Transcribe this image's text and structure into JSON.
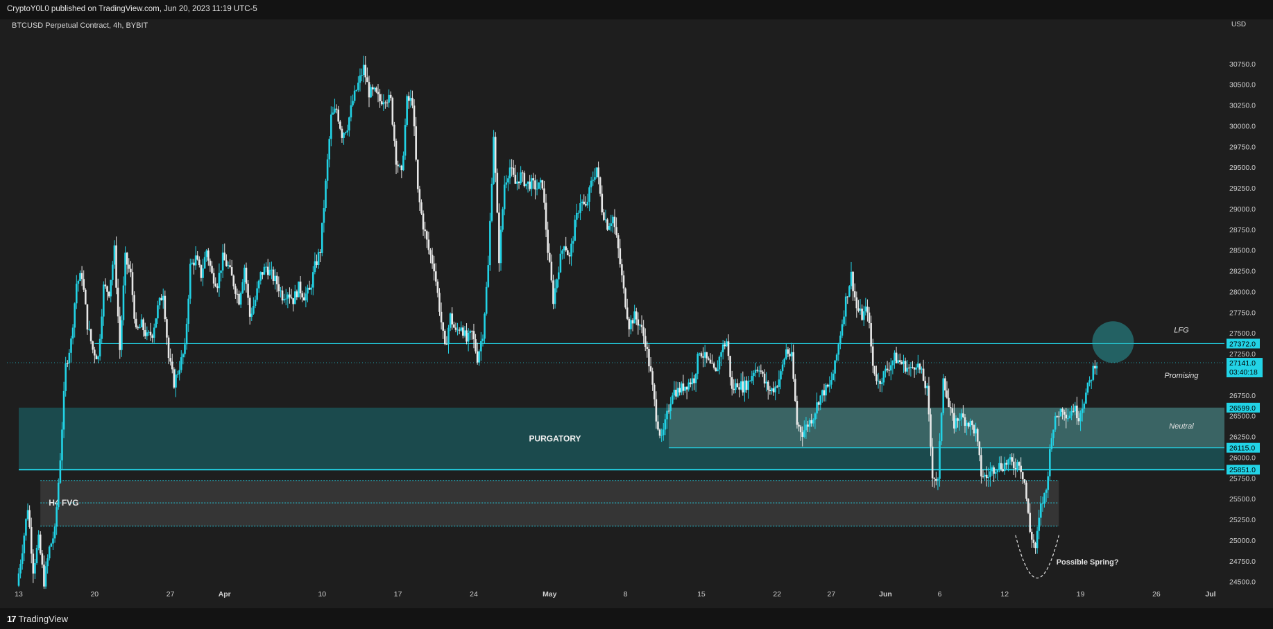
{
  "header": {
    "published": "CryptoY0L0 published on TradingView.com, Jun 20, 2023 11:19 UTC-5"
  },
  "footer": {
    "brand": "TradingView",
    "logo_glyph": "17"
  },
  "chart_data": {
    "type": "candlestick",
    "title": "BTCUSD Perpetual Contract, 4h, BYBIT",
    "currency_label": "USD",
    "y_ticks": [
      30750,
      30500,
      30250,
      30000,
      29750,
      29500,
      29250,
      29000,
      28750,
      28500,
      28250,
      28000,
      27750,
      27500,
      27250,
      27000,
      26750,
      26500,
      26250,
      26000,
      25750,
      25500,
      25250,
      25000,
      24750,
      24500
    ],
    "y_tick_labels": [
      "30750.0",
      "30500.0",
      "30250.0",
      "30000.0",
      "29750.0",
      "29500.0",
      "29250.0",
      "29000.0",
      "28750.0",
      "28500.0",
      "28250.0",
      "28000.0",
      "27750.0",
      "27500.0",
      "27250.0",
      "27000.0",
      "26750.0",
      "26500.0",
      "26250.0",
      "26000.0",
      "25750.0",
      "25500.0",
      "25250.0",
      "25000.0",
      "24750.0",
      "24500.0"
    ],
    "ylim": [
      24380,
      31200
    ],
    "x_range": [
      "2023-03-13",
      "2023-07-01"
    ],
    "x_ticks": [
      {
        "label": "13",
        "date": "2023-03-13"
      },
      {
        "label": "20",
        "date": "2023-03-20"
      },
      {
        "label": "27",
        "date": "2023-03-27"
      },
      {
        "label": "Apr",
        "date": "2023-04-01"
      },
      {
        "label": "10",
        "date": "2023-04-10"
      },
      {
        "label": "17",
        "date": "2023-04-17"
      },
      {
        "label": "24",
        "date": "2023-04-24"
      },
      {
        "label": "May",
        "date": "2023-05-01"
      },
      {
        "label": "8",
        "date": "2023-05-08"
      },
      {
        "label": "15",
        "date": "2023-05-15"
      },
      {
        "label": "22",
        "date": "2023-05-22"
      },
      {
        "label": "27",
        "date": "2023-05-27"
      },
      {
        "label": "Jun",
        "date": "2023-06-01"
      },
      {
        "label": "6",
        "date": "2023-06-06"
      },
      {
        "label": "12",
        "date": "2023-06-12"
      },
      {
        "label": "19",
        "date": "2023-06-19"
      },
      {
        "label": "26",
        "date": "2023-06-26"
      },
      {
        "label": "Jul",
        "date": "2023-07-01"
      }
    ],
    "price_path": [
      [
        "2023-03-13",
        24450
      ],
      [
        "2023-03-13T12",
        24900
      ],
      [
        "2023-03-14",
        25400
      ],
      [
        "2023-03-14T12",
        24650
      ],
      [
        "2023-03-15",
        25000
      ],
      [
        "2023-03-15T12",
        24500
      ],
      [
        "2023-03-16",
        24900
      ],
      [
        "2023-03-16T12",
        25100
      ],
      [
        "2023-03-17",
        26000
      ],
      [
        "2023-03-17T12",
        27100
      ],
      [
        "2023-03-18",
        27400
      ],
      [
        "2023-03-18T12",
        28100
      ],
      [
        "2023-03-19",
        28200
      ],
      [
        "2023-03-19T12",
        27600
      ],
      [
        "2023-03-20",
        27300
      ],
      [
        "2023-03-20T12",
        27200
      ],
      [
        "2023-03-21",
        28050
      ],
      [
        "2023-03-21T12",
        28000
      ],
      [
        "2023-03-22",
        28500
      ],
      [
        "2023-03-22T12",
        27300
      ],
      [
        "2023-03-23",
        28400
      ],
      [
        "2023-03-23T12",
        28200
      ],
      [
        "2023-03-24",
        27500
      ],
      [
        "2023-03-24T12",
        27600
      ],
      [
        "2023-03-25",
        27450
      ],
      [
        "2023-03-25T12",
        27500
      ],
      [
        "2023-03-26",
        27800
      ],
      [
        "2023-03-26T12",
        28000
      ],
      [
        "2023-03-27",
        27200
      ],
      [
        "2023-03-27T12",
        26900
      ],
      [
        "2023-03-28",
        27100
      ],
      [
        "2023-03-28T12",
        27300
      ],
      [
        "2023-03-29",
        28300
      ],
      [
        "2023-03-29T12",
        28400
      ],
      [
        "2023-03-30",
        28200
      ],
      [
        "2023-03-30T12",
        28500
      ],
      [
        "2023-03-31",
        28200
      ],
      [
        "2023-03-31T12",
        28100
      ],
      [
        "2023-04-01",
        28400
      ],
      [
        "2023-04-01T12",
        28300
      ],
      [
        "2023-04-02",
        28100
      ],
      [
        "2023-04-02T12",
        27900
      ],
      [
        "2023-04-03",
        28300
      ],
      [
        "2023-04-03T12",
        27700
      ],
      [
        "2023-04-04",
        27900
      ],
      [
        "2023-04-04T12",
        28200
      ],
      [
        "2023-04-05",
        28300
      ],
      [
        "2023-04-05T12",
        28200
      ],
      [
        "2023-04-06",
        28100
      ],
      [
        "2023-04-06T12",
        27950
      ],
      [
        "2023-04-07",
        28000
      ],
      [
        "2023-04-07T12",
        27900
      ],
      [
        "2023-04-08",
        28050
      ],
      [
        "2023-04-08T12",
        27950
      ],
      [
        "2023-04-09",
        28000
      ],
      [
        "2023-04-09T12",
        28300
      ],
      [
        "2023-04-10",
        28500
      ],
      [
        "2023-04-10T12",
        29300
      ],
      [
        "2023-04-11",
        30100
      ],
      [
        "2023-04-11T12",
        30200
      ],
      [
        "2023-04-12",
        29900
      ],
      [
        "2023-04-12T12",
        30000
      ],
      [
        "2023-04-13",
        30300
      ],
      [
        "2023-04-13T12",
        30500
      ],
      [
        "2023-04-14",
        30700
      ],
      [
        "2023-04-14T12",
        30400
      ],
      [
        "2023-04-15",
        30400
      ],
      [
        "2023-04-15T12",
        30300
      ],
      [
        "2023-04-16",
        30350
      ],
      [
        "2023-04-16T12",
        30300
      ],
      [
        "2023-04-17",
        29600
      ],
      [
        "2023-04-17T12",
        29400
      ],
      [
        "2023-04-18",
        30300
      ],
      [
        "2023-04-18T12",
        30300
      ],
      [
        "2023-04-19",
        29200
      ],
      [
        "2023-04-19T12",
        28800
      ],
      [
        "2023-04-20",
        28500
      ],
      [
        "2023-04-20T12",
        28300
      ],
      [
        "2023-04-21",
        27800
      ],
      [
        "2023-04-21T12",
        27300
      ],
      [
        "2023-04-22",
        27700
      ],
      [
        "2023-04-22T12",
        27500
      ],
      [
        "2023-04-23",
        27600
      ],
      [
        "2023-04-23T12",
        27400
      ],
      [
        "2023-04-24",
        27500
      ],
      [
        "2023-04-24T12",
        27200
      ],
      [
        "2023-04-25",
        27500
      ],
      [
        "2023-04-25T12",
        28300
      ],
      [
        "2023-04-26",
        29900
      ],
      [
        "2023-04-26T12",
        28400
      ],
      [
        "2023-04-27",
        29300
      ],
      [
        "2023-04-27T12",
        29500
      ],
      [
        "2023-04-28",
        29300
      ],
      [
        "2023-04-28T12",
        29400
      ],
      [
        "2023-04-29",
        29300
      ],
      [
        "2023-04-29T12",
        29300
      ],
      [
        "2023-04-30",
        29250
      ],
      [
        "2023-04-30T12",
        29300
      ],
      [
        "2023-05-01",
        28500
      ],
      [
        "2023-05-01T12",
        27900
      ],
      [
        "2023-05-02",
        28300
      ],
      [
        "2023-05-02T12",
        28600
      ],
      [
        "2023-05-03",
        28400
      ],
      [
        "2023-05-03T12",
        28800
      ],
      [
        "2023-05-04",
        29100
      ],
      [
        "2023-05-04T12",
        29000
      ],
      [
        "2023-05-05",
        29300
      ],
      [
        "2023-05-05T12",
        29500
      ],
      [
        "2023-05-06",
        29000
      ],
      [
        "2023-05-06T12",
        28800
      ],
      [
        "2023-05-07",
        28900
      ],
      [
        "2023-05-07T12",
        28500
      ],
      [
        "2023-05-08",
        28000
      ],
      [
        "2023-05-08T12",
        27600
      ],
      [
        "2023-05-09",
        27700
      ],
      [
        "2023-05-09T12",
        27600
      ],
      [
        "2023-05-10",
        27400
      ],
      [
        "2023-05-10T12",
        27000
      ],
      [
        "2023-05-11",
        26500
      ],
      [
        "2023-05-11T12",
        26200
      ],
      [
        "2023-05-12",
        26500
      ],
      [
        "2023-05-12T12",
        26800
      ],
      [
        "2023-05-13",
        26800
      ],
      [
        "2023-05-13T12",
        26850
      ],
      [
        "2023-05-14",
        26900
      ],
      [
        "2023-05-14T12",
        26950
      ],
      [
        "2023-05-15",
        27300
      ],
      [
        "2023-05-15T12",
        27200
      ],
      [
        "2023-05-16",
        27100
      ],
      [
        "2023-05-16T12",
        27000
      ],
      [
        "2023-05-17",
        27300
      ],
      [
        "2023-05-17T12",
        27400
      ],
      [
        "2023-05-18",
        26800
      ],
      [
        "2023-05-18T12",
        26900
      ],
      [
        "2023-05-19",
        26850
      ],
      [
        "2023-05-19T12",
        26900
      ],
      [
        "2023-05-20",
        27050
      ],
      [
        "2023-05-20T12",
        27100
      ],
      [
        "2023-05-21",
        26900
      ],
      [
        "2023-05-21T12",
        26800
      ],
      [
        "2023-05-22",
        26850
      ],
      [
        "2023-05-22T12",
        27000
      ],
      [
        "2023-05-23",
        27300
      ],
      [
        "2023-05-23T12",
        27200
      ],
      [
        "2023-05-24",
        26400
      ],
      [
        "2023-05-24T12",
        26300
      ],
      [
        "2023-05-25",
        26400
      ],
      [
        "2023-05-25T12",
        26500
      ],
      [
        "2023-05-26",
        26700
      ],
      [
        "2023-05-26T12",
        26800
      ],
      [
        "2023-05-27",
        26850
      ],
      [
        "2023-05-27T12",
        27100
      ],
      [
        "2023-05-28",
        27500
      ],
      [
        "2023-05-28T12",
        27900
      ],
      [
        "2023-05-29",
        28200
      ],
      [
        "2023-05-29T12",
        27800
      ],
      [
        "2023-05-30",
        27700
      ],
      [
        "2023-05-30T12",
        27800
      ],
      [
        "2023-05-31",
        27100
      ],
      [
        "2023-05-31T12",
        26900
      ],
      [
        "2023-06-01",
        27000
      ],
      [
        "2023-06-01T12",
        27100
      ],
      [
        "2023-06-02",
        27200
      ],
      [
        "2023-06-02T12",
        27150
      ],
      [
        "2023-06-03",
        27100
      ],
      [
        "2023-06-03T12",
        27050
      ],
      [
        "2023-06-04",
        27150
      ],
      [
        "2023-06-04T12",
        27000
      ],
      [
        "2023-06-05",
        26800
      ],
      [
        "2023-06-05T12",
        25800
      ],
      [
        "2023-06-06",
        25700
      ],
      [
        "2023-06-06T12",
        27000
      ],
      [
        "2023-06-07",
        26600
      ],
      [
        "2023-06-07T12",
        26400
      ],
      [
        "2023-06-08",
        26500
      ],
      [
        "2023-06-08T12",
        26450
      ],
      [
        "2023-06-09",
        26400
      ],
      [
        "2023-06-09T12",
        26300
      ],
      [
        "2023-06-10",
        25800
      ],
      [
        "2023-06-10T12",
        25750
      ],
      [
        "2023-06-11",
        25850
      ],
      [
        "2023-06-11T12",
        25900
      ],
      [
        "2023-06-12",
        25900
      ],
      [
        "2023-06-12T12",
        25950
      ],
      [
        "2023-06-13",
        25900
      ],
      [
        "2023-06-13T12",
        25950
      ],
      [
        "2023-06-14",
        25700
      ],
      [
        "2023-06-14T12",
        25100
      ],
      [
        "2023-06-15",
        24900
      ],
      [
        "2023-06-15T12",
        25400
      ],
      [
        "2023-06-16",
        25600
      ],
      [
        "2023-06-16T12",
        26300
      ],
      [
        "2023-06-17",
        26500
      ],
      [
        "2023-06-17T12",
        26600
      ],
      [
        "2023-06-18",
        26500
      ],
      [
        "2023-06-18T12",
        26600
      ],
      [
        "2023-06-19",
        26500
      ],
      [
        "2023-06-19T12",
        26700
      ],
      [
        "2023-06-20",
        26900
      ],
      [
        "2023-06-20T12",
        27141
      ]
    ],
    "price_labels": [
      {
        "text": "27372.0",
        "price": 27372
      },
      {
        "text": "27141.0",
        "price": 27141,
        "countdown": "03:40:18"
      },
      {
        "text": "26599.0",
        "price": 26599
      },
      {
        "text": "26115.0",
        "price": 26115
      },
      {
        "text": "25851.0",
        "price": 25851
      }
    ],
    "zones": [
      {
        "name": "purgatory",
        "label": "PURGATORY",
        "from_price": 25851,
        "to_price": 26599,
        "start": "2023-03-13",
        "color": "#1b4a4d"
      },
      {
        "name": "neutral",
        "label": "Neutral",
        "from_price": 26115,
        "to_price": 26599,
        "start": "2023-05-12",
        "color": "#3f6968"
      },
      {
        "name": "h4-fvg",
        "label": "H4 FVG",
        "from_price": 25170,
        "to_price": 25720,
        "mid_price": 25450,
        "start": "2023-03-15",
        "end": "2023-06-17",
        "color": "#353535"
      }
    ],
    "lines": [
      {
        "name": "line-27372",
        "price": 27372,
        "start": "2023-03-20",
        "color": "#22d3e6"
      },
      {
        "name": "line-26115",
        "price": 26115,
        "start": "2023-05-12",
        "color": "#22d3e6"
      },
      {
        "name": "line-25851",
        "price": 25851,
        "start": "2023-03-13",
        "color": "#22d3e6"
      }
    ],
    "annotations": [
      {
        "name": "lfg-label",
        "text": "LFG",
        "price": 27540
      },
      {
        "name": "promising-label",
        "text": "Promising",
        "price": 26990
      },
      {
        "name": "neutral-label",
        "text": "Neutral",
        "price": 26380
      },
      {
        "name": "possible-spring-label",
        "text": "Possible Spring?",
        "date": "2023-06-16",
        "price": 24740
      }
    ],
    "target_circle": {
      "date": "2023-06-22",
      "price": 27390,
      "color": "#2ab3b8"
    },
    "spring_arc": {
      "start": "2023-06-13",
      "bottom": "2023-06-15",
      "end": "2023-06-17",
      "from_price": 25060,
      "low_price": 24530
    },
    "colors": {
      "up": "#22d3e6",
      "down": "#e8e8e8",
      "accent": "#22d3e6",
      "background": "#1e1e1e",
      "axis_text": "#d0d0d0"
    }
  }
}
